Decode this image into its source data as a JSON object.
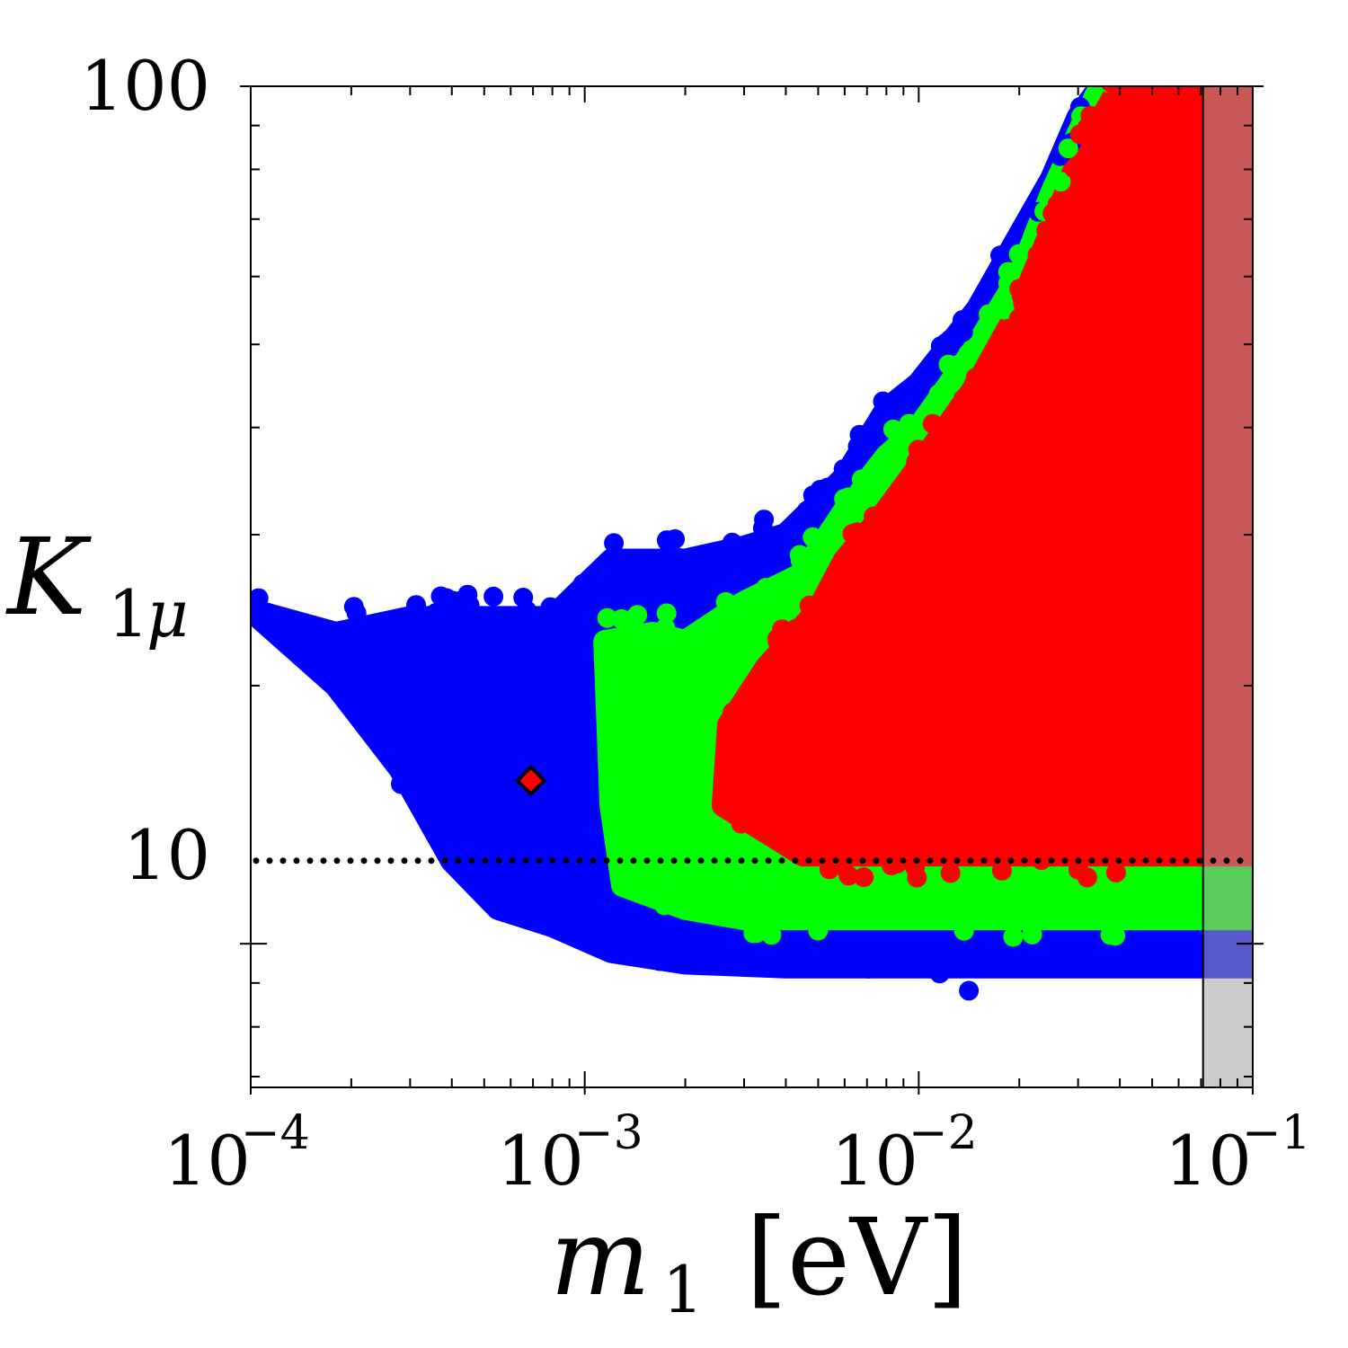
{
  "chart_data": {
    "type": "scatter",
    "title": "",
    "xscale": "log",
    "yscale": "log",
    "xlim": [
      0.0001,
      0.1
    ],
    "ylim": [
      6.8,
      100
    ],
    "xlabel": {
      "main": "m",
      "sub": "1",
      "unit": "[eV]"
    },
    "ylabel": {
      "main": "K",
      "sub_num": "1",
      "sub_greek": "μ"
    },
    "x_ticks": [
      {
        "value": 0.0001,
        "base": "10",
        "exp": "−4"
      },
      {
        "value": 0.001,
        "base": "10",
        "exp": "−3"
      },
      {
        "value": 0.01,
        "base": "10",
        "exp": "−2"
      },
      {
        "value": 0.1,
        "base": "10",
        "exp": "−1"
      }
    ],
    "y_ticks": [
      {
        "value": 10,
        "label": "10"
      },
      {
        "value": 100,
        "label": "100"
      }
    ],
    "grid": false,
    "legend": "none",
    "colors": {
      "blue": "#0000ff",
      "green": "#00ff00",
      "red": "#ff0000",
      "excluded_band": "#a0a0a0",
      "dotted_line": "#000000"
    },
    "reference_line": {
      "y": 12.5,
      "style": "dotted"
    },
    "excluded_region": {
      "x_from": 0.071,
      "x_to": 0.1
    },
    "marker": {
      "x": 0.00069,
      "y": 15.5,
      "shape": "diamond",
      "fill": "#ff0000"
    },
    "regions": [
      {
        "color": "blue",
        "upper_boundary": [
          [
            0.0001,
            24.5
          ],
          [
            0.00018,
            23
          ],
          [
            0.0003,
            24
          ],
          [
            0.0005,
            24
          ],
          [
            0.0008,
            24
          ],
          [
            0.0012,
            28
          ],
          [
            0.002,
            28
          ],
          [
            0.003,
            29
          ],
          [
            0.004,
            30
          ],
          [
            0.006,
            35
          ],
          [
            0.008,
            42
          ],
          [
            0.01,
            45
          ],
          [
            0.015,
            55
          ],
          [
            0.02,
            67
          ],
          [
            0.025,
            78
          ],
          [
            0.03,
            92
          ],
          [
            0.035,
            100
          ],
          [
            0.1,
            100
          ]
        ],
        "lower_boundary": [
          [
            0.0001,
            24.5
          ],
          [
            0.00018,
            20
          ],
          [
            0.00028,
            16
          ],
          [
            0.0004,
            12.5
          ],
          [
            0.00055,
            11
          ],
          [
            0.0008,
            10.5
          ],
          [
            0.0012,
            9.8
          ],
          [
            0.002,
            9.5
          ],
          [
            0.004,
            9.4
          ],
          [
            0.01,
            9.4
          ],
          [
            0.03,
            9.4
          ],
          [
            0.1,
            9.4
          ]
        ]
      },
      {
        "color": "green",
        "upper_boundary": [
          [
            0.00115,
            22.5
          ],
          [
            0.0016,
            23
          ],
          [
            0.002,
            22.5
          ],
          [
            0.003,
            25
          ],
          [
            0.0045,
            27
          ],
          [
            0.006,
            32
          ],
          [
            0.008,
            37
          ],
          [
            0.01,
            40
          ],
          [
            0.015,
            50
          ],
          [
            0.02,
            60
          ],
          [
            0.025,
            75
          ],
          [
            0.03,
            88
          ],
          [
            0.035,
            100
          ],
          [
            0.1,
            100
          ]
        ],
        "lower_boundary": [
          [
            0.00115,
            22.5
          ],
          [
            0.0012,
            14.5
          ],
          [
            0.0013,
            11.7
          ],
          [
            0.002,
            11.0
          ],
          [
            0.003,
            10.7
          ],
          [
            0.01,
            10.7
          ],
          [
            0.1,
            10.7
          ]
        ]
      },
      {
        "color": "red",
        "upper_boundary": [
          [
            0.0027,
            18
          ],
          [
            0.0035,
            21
          ],
          [
            0.005,
            24.5
          ],
          [
            0.006,
            28
          ],
          [
            0.008,
            32
          ],
          [
            0.01,
            36
          ],
          [
            0.015,
            45
          ],
          [
            0.02,
            55
          ],
          [
            0.025,
            68
          ],
          [
            0.03,
            82
          ],
          [
            0.04,
            100
          ],
          [
            0.1,
            100
          ]
        ],
        "lower_boundary": [
          [
            0.0027,
            18
          ],
          [
            0.0026,
            14.5
          ],
          [
            0.0035,
            13.5
          ],
          [
            0.0045,
            12.7
          ],
          [
            0.1,
            12.7
          ]
        ]
      }
    ]
  }
}
